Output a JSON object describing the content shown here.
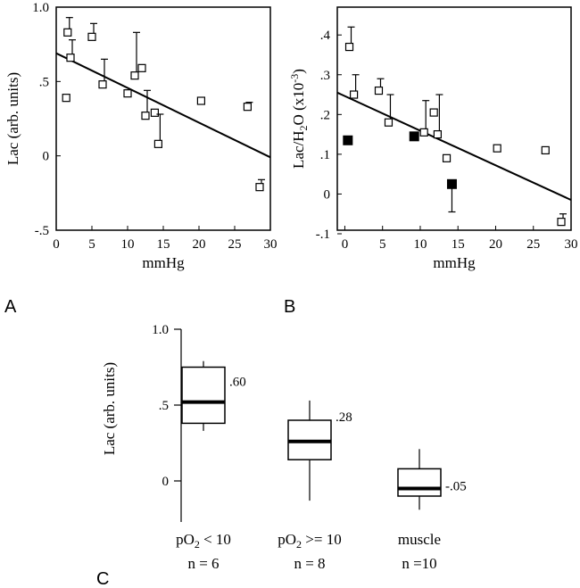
{
  "chart_data": [
    {
      "panel_label": "A",
      "type": "scatter",
      "xlabel": "mmHg",
      "ylabel": "Lac (arb. units)",
      "xlim": [
        0,
        30
      ],
      "ylim": [
        -0.5,
        1.0
      ],
      "x_ticks": [
        "0",
        "5",
        "10",
        "15",
        "20",
        "25",
        "30"
      ],
      "y_ticks": [
        "1.0",
        ".5",
        "0",
        "-.5"
      ],
      "points": [
        {
          "x": 1.4,
          "y": 0.39,
          "err": 0
        },
        {
          "x": 1.6,
          "y": 0.83,
          "err": 0.1
        },
        {
          "x": 2.0,
          "y": 0.66,
          "err": 0.12
        },
        {
          "x": 5.0,
          "y": 0.8,
          "err": 0.09
        },
        {
          "x": 6.5,
          "y": 0.48,
          "err": 0.17
        },
        {
          "x": 10.0,
          "y": 0.42,
          "err": 0
        },
        {
          "x": 11.0,
          "y": 0.54,
          "err": 0.29
        },
        {
          "x": 12.0,
          "y": 0.59,
          "err": 0
        },
        {
          "x": 12.5,
          "y": 0.27,
          "err": 0.17
        },
        {
          "x": 13.8,
          "y": 0.29,
          "err": 0
        },
        {
          "x": 14.3,
          "y": 0.08,
          "err": 0.2
        },
        {
          "x": 20.3,
          "y": 0.37,
          "err": 0
        },
        {
          "x": 26.8,
          "y": 0.33,
          "err": 0.03
        },
        {
          "x": 28.5,
          "y": -0.21,
          "err": 0.05
        }
      ],
      "fit_line": [
        [
          0,
          0.69
        ],
        [
          30,
          -0.01
        ]
      ]
    },
    {
      "panel_label": "B",
      "type": "scatter",
      "xlabel": "mmHg",
      "ylabel_main": "Lac/H",
      "ylabel_sub": "2",
      "ylabel_mid": "O (x10",
      "ylabel_sup": "-3",
      "ylabel_end": ")",
      "xlim": [
        -1,
        30
      ],
      "ylim": [
        -0.1,
        0.47
      ],
      "x_ticks": [
        "0",
        "5",
        "10",
        "15",
        "20",
        "25",
        "30"
      ],
      "y_ticks": [
        ".4",
        ".3",
        ".2",
        ".1",
        "0",
        "-.1"
      ],
      "open_points": [
        {
          "x": 0.6,
          "y": 0.37,
          "err": 0.05
        },
        {
          "x": 1.2,
          "y": 0.25,
          "err": 0.05
        },
        {
          "x": 4.5,
          "y": 0.26,
          "err": 0.03
        },
        {
          "x": 5.8,
          "y": 0.18,
          "err": 0.07
        },
        {
          "x": 10.5,
          "y": 0.155,
          "err": 0.08
        },
        {
          "x": 11.8,
          "y": 0.205,
          "err": 0
        },
        {
          "x": 12.3,
          "y": 0.15,
          "err": 0.1
        },
        {
          "x": 13.5,
          "y": 0.09,
          "err": 0
        },
        {
          "x": 20.2,
          "y": 0.115,
          "err": 0
        },
        {
          "x": 26.6,
          "y": 0.11,
          "err": 0
        },
        {
          "x": 28.7,
          "y": -0.07,
          "err": 0.02
        }
      ],
      "filled_points": [
        {
          "x": 0.4,
          "y": 0.135
        },
        {
          "x": 9.2,
          "y": 0.145
        },
        {
          "x": 14.2,
          "y": 0.025,
          "err": 0.07
        }
      ],
      "fit_line": [
        [
          -1,
          0.255
        ],
        [
          30,
          -0.015
        ]
      ]
    },
    {
      "panel_label": "C",
      "type": "box",
      "ylabel": "Lac (arb. units)",
      "ylim": [
        -0.15,
        1.0
      ],
      "y_ticks": [
        "1.0",
        ".5",
        "0"
      ],
      "boxes": [
        {
          "label_main": "pO",
          "label_sub": "2",
          "label_rest": " < 10",
          "n_label": "n = 6",
          "whisker_low": 0.33,
          "q1": 0.38,
          "median": 0.52,
          "q3": 0.75,
          "whisker_high": 0.79,
          "value_label": ".60"
        },
        {
          "label_main": "pO",
          "label_sub": "2",
          "label_rest": " >= 10",
          "n_label": "n = 8",
          "whisker_low": -0.13,
          "q1": 0.14,
          "median": 0.26,
          "q3": 0.4,
          "whisker_high": 0.53,
          "value_label": ".28"
        },
        {
          "label_main": "muscle",
          "label_sub": "",
          "label_rest": "",
          "n_label": "n =10",
          "whisker_low": -0.19,
          "q1": -0.1,
          "median": -0.05,
          "q3": 0.08,
          "whisker_high": 0.21,
          "value_label": "-.05"
        }
      ]
    }
  ]
}
